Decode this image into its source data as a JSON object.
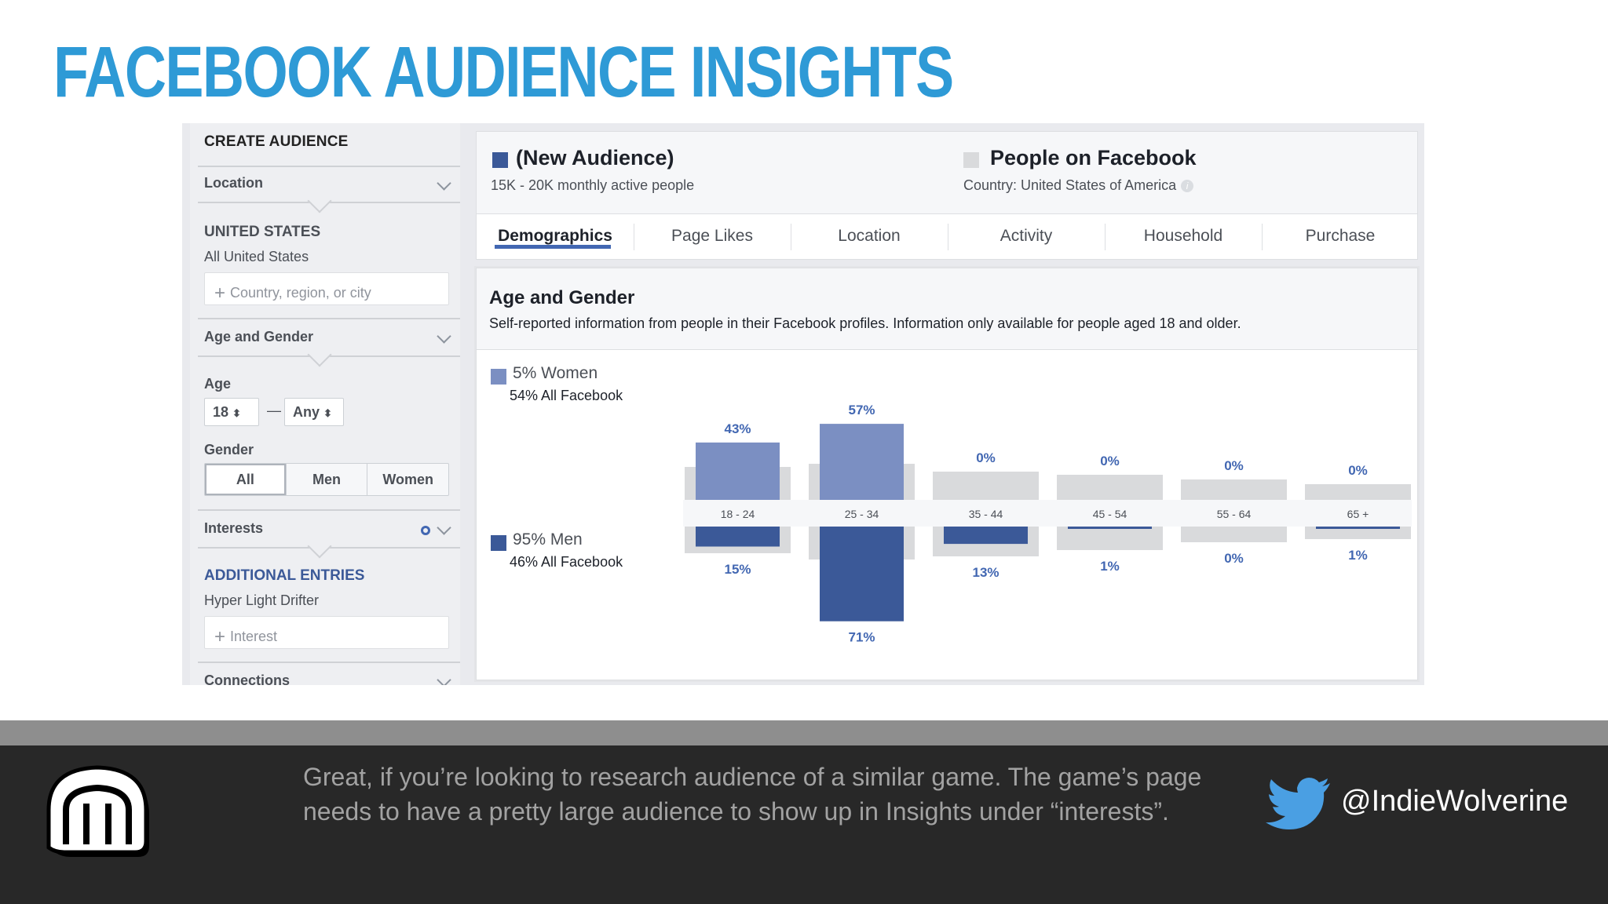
{
  "slide": {
    "title": "FACEBOOK AUDIENCE INSIGHTS",
    "note": "Great, if you’re looking to research audience of a similar game. The game’s page needs to have a pretty large audience to show up in Insights under “interests”.",
    "twitter_handle": "@IndieWolverine"
  },
  "sidebar": {
    "header": "CREATE AUDIENCE",
    "location": {
      "label": "Location",
      "country": "UNITED STATES",
      "scope": "All United States",
      "placeholder": "Country, region, or city"
    },
    "age_gender": {
      "label": "Age and Gender",
      "age_label": "Age",
      "age_min": "18",
      "age_sep": "—",
      "age_max": "Any",
      "gender_label": "Gender",
      "gender_options": [
        "All",
        "Men",
        "Women"
      ],
      "gender_selected": "All"
    },
    "interests": {
      "label": "Interests",
      "additional_header": "ADDITIONAL ENTRIES",
      "entry": "Hyper Light Drifter",
      "placeholder": "Interest"
    },
    "connections": {
      "label": "Connections"
    }
  },
  "header": {
    "audience_name": "(New Audience)",
    "audience_size": "15K - 20K monthly active people",
    "compare_name": "People on Facebook",
    "compare_scope": "Country: United States of America",
    "colors": {
      "audience": "#3b5998",
      "compare": "#d9dadc"
    }
  },
  "tabs": [
    "Demographics",
    "Page Likes",
    "Location",
    "Activity",
    "Household",
    "Purchase"
  ],
  "active_tab": "Demographics",
  "panel": {
    "title": "Age and Gender",
    "description": "Self-reported information from people in their Facebook profiles. Information only available for people aged 18 and older.",
    "women_legend": "5% Women",
    "women_all_fb": "54% All Facebook",
    "men_legend": "95% Men",
    "men_all_fb": "46% All Facebook"
  },
  "chart_data": {
    "type": "bar",
    "categories": [
      "18 - 24",
      "25 - 34",
      "35 - 44",
      "45 - 54",
      "55 - 64",
      "65 +"
    ],
    "series": [
      {
        "name": "5% Women",
        "values": [
          43,
          57,
          0,
          0,
          0,
          0
        ],
        "labels": [
          "43%",
          "57%",
          "0%",
          "0%",
          "0%",
          "0%"
        ],
        "color": "#7b8fc2",
        "direction": "up"
      },
      {
        "name": "95% Men",
        "values": [
          15,
          71,
          13,
          1,
          0,
          1
        ],
        "labels": [
          "15%",
          "71%",
          "13%",
          "1%",
          "0%",
          "1%"
        ],
        "color": "#3b5998",
        "direction": "down"
      }
    ],
    "benchmark_color": "#d9dadc",
    "ylim": [
      0,
      100
    ]
  }
}
